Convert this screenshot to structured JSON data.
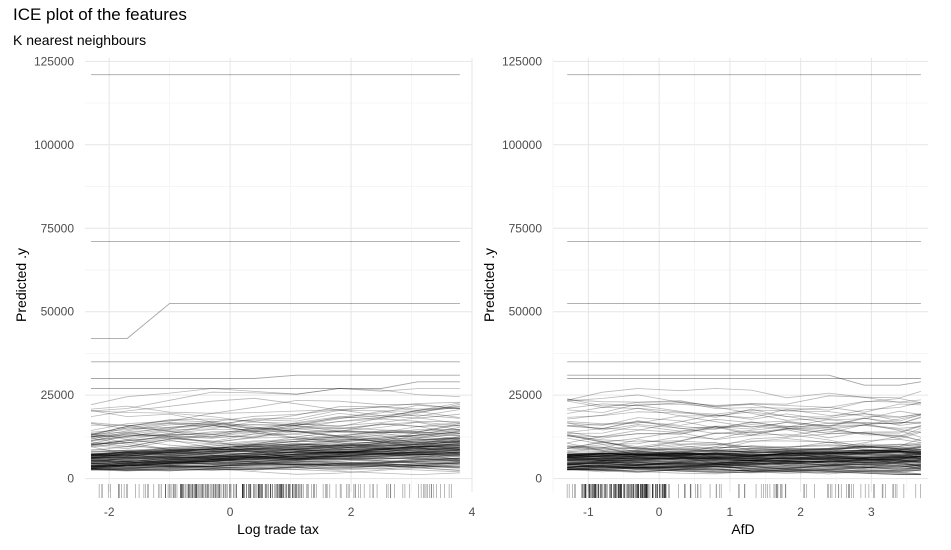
{
  "figure": {
    "title": "ICE plot of the features",
    "subtitle": "K nearest neighbours"
  },
  "chart_data": [
    {
      "type": "line",
      "xlabel": "Log trade tax",
      "ylabel": "Predicted .y",
      "xlim": [
        -2.4,
        4.0
      ],
      "ylim": [
        -4000,
        126000
      ],
      "xticks": [
        -2,
        0,
        2,
        4
      ],
      "yticks": [
        0,
        25000,
        50000,
        75000,
        100000,
        125000
      ],
      "ytick_labels": [
        "0",
        "25000",
        "50000",
        "75000",
        "100000",
        "125000"
      ],
      "grid": true,
      "rug": true,
      "x_grid": [
        -2.3,
        -1.7,
        -1.0,
        -0.3,
        0.4,
        1.1,
        1.8,
        2.5,
        3.1,
        3.8
      ],
      "highlight_series": [
        {
          "y": [
            121000,
            121000,
            121000,
            121000,
            121000,
            121000,
            121000,
            121000,
            121000,
            121000
          ]
        },
        {
          "y": [
            71000,
            71000,
            71000,
            71000,
            71000,
            71000,
            71000,
            71000,
            71000,
            71000
          ]
        },
        {
          "y": [
            42000,
            42000,
            52500,
            52500,
            52500,
            52500,
            52500,
            52500,
            52500,
            52500
          ]
        },
        {
          "y": [
            35000,
            35000,
            35000,
            35000,
            35000,
            35000,
            35000,
            35000,
            35000,
            35000
          ]
        },
        {
          "y": [
            30000,
            30000,
            30000,
            30000,
            30000,
            31000,
            31000,
            31000,
            31000,
            31000
          ]
        },
        {
          "y": [
            27000,
            27000,
            27000,
            27000,
            27000,
            27000,
            27000,
            27000,
            29000,
            29000
          ]
        }
      ],
      "ice_summary": {
        "n_curves": 150,
        "range": [
          1500,
          24000
        ],
        "dense_range": [
          3000,
          9000
        ],
        "trend": "increasing"
      }
    },
    {
      "type": "line",
      "xlabel": "AfD",
      "ylabel": "Predicted .y",
      "xlim": [
        -1.5,
        3.8
      ],
      "ylim": [
        -4000,
        126000
      ],
      "xticks": [
        -1,
        0,
        1,
        2,
        3
      ],
      "yticks": [
        0,
        25000,
        50000,
        75000,
        100000,
        125000
      ],
      "ytick_labels": [
        "0",
        "25000",
        "50000",
        "75000",
        "100000",
        "125000"
      ],
      "grid": true,
      "rug": true,
      "x_grid": [
        -1.3,
        -0.8,
        -0.3,
        0.3,
        0.8,
        1.3,
        1.8,
        2.4,
        2.9,
        3.4,
        3.7
      ],
      "highlight_series": [
        {
          "y": [
            121000,
            121000,
            121000,
            121000,
            121000,
            121000,
            121000,
            121000,
            121000,
            121000,
            121000
          ]
        },
        {
          "y": [
            71000,
            71000,
            71000,
            71000,
            71000,
            71000,
            71000,
            71000,
            71000,
            71000,
            71000
          ]
        },
        {
          "y": [
            52500,
            52500,
            52500,
            52500,
            52500,
            52500,
            52500,
            52500,
            52500,
            52500,
            52500
          ]
        },
        {
          "y": [
            35000,
            35000,
            35000,
            35000,
            35000,
            35000,
            35000,
            35000,
            35000,
            35000,
            35000
          ]
        },
        {
          "y": [
            31000,
            31000,
            31000,
            31000,
            31000,
            31000,
            31000,
            31000,
            28000,
            28000,
            29000
          ]
        },
        {
          "y": [
            30000,
            30000,
            30000,
            30000,
            30000,
            30000,
            30000,
            30000,
            30000,
            30000,
            30000
          ]
        }
      ],
      "ice_summary": {
        "n_curves": 150,
        "range": [
          1500,
          24000
        ],
        "dense_range": [
          3000,
          8000
        ],
        "trend": "flat-slightly-increasing"
      }
    }
  ]
}
